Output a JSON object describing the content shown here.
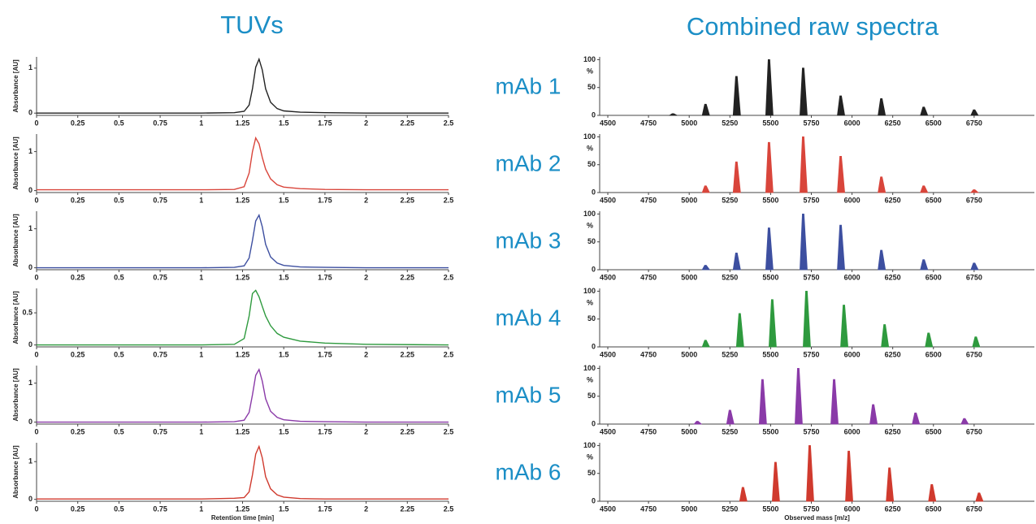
{
  "panel_titles": [
    "TUVs",
    "Combined raw spectra"
  ],
  "sample_labels": [
    "mAb 1",
    "mAb 2",
    "mAb 3",
    "mAb 4",
    "mAb 5",
    "mAb 6"
  ],
  "chart_data": [
    {
      "type": "line",
      "y_label": "Absorbance [AU]",
      "color": "#222222",
      "x": [
        0,
        0.5,
        1,
        1.2,
        1.26,
        1.29,
        1.31,
        1.33,
        1.35,
        1.37,
        1.39,
        1.42,
        1.46,
        1.5,
        1.6,
        1.75,
        2,
        2.5
      ],
      "values": [
        0,
        0,
        0,
        0.01,
        0.04,
        0.18,
        0.54,
        1.02,
        1.2,
        0.96,
        0.54,
        0.24,
        0.1,
        0.05,
        0.02,
        0.01,
        0,
        0
      ],
      "xlim": [
        0,
        2.5
      ],
      "xticks": [
        0,
        0.25,
        0.5,
        0.75,
        1,
        1.25,
        1.5,
        1.75,
        2,
        2.25,
        2.5
      ],
      "ylim": [
        -0.05,
        1.25
      ],
      "yticks": [
        0,
        1
      ]
    },
    {
      "type": "line",
      "y_label": "Absorbance [AU]",
      "color": "#d9453b",
      "x": [
        0,
        0.5,
        1,
        1.2,
        1.26,
        1.29,
        1.31,
        1.33,
        1.35,
        1.37,
        1.39,
        1.42,
        1.46,
        1.5,
        1.6,
        1.75,
        2,
        2.5
      ],
      "values": [
        0.02,
        0.02,
        0.02,
        0.03,
        0.1,
        0.45,
        1.0,
        1.35,
        1.2,
        0.85,
        0.55,
        0.3,
        0.15,
        0.09,
        0.05,
        0.03,
        0.02,
        0.02
      ],
      "xlim": [
        0,
        2.5
      ],
      "xticks": [
        0,
        0.25,
        0.5,
        0.75,
        1,
        1.25,
        1.5,
        1.75,
        2,
        2.25,
        2.5
      ],
      "ylim": [
        -0.05,
        1.45
      ],
      "yticks": [
        0,
        1
      ]
    },
    {
      "type": "line",
      "y_label": "Absorbance [AU]",
      "color": "#3d4fa0",
      "x": [
        0,
        0.5,
        1,
        1.2,
        1.26,
        1.29,
        1.31,
        1.33,
        1.35,
        1.37,
        1.39,
        1.42,
        1.46,
        1.5,
        1.6,
        1.75,
        2,
        2.5
      ],
      "values": [
        0,
        0,
        0,
        0.01,
        0.05,
        0.25,
        0.7,
        1.2,
        1.35,
        1.05,
        0.6,
        0.28,
        0.12,
        0.06,
        0.02,
        0.01,
        0,
        0
      ],
      "xlim": [
        0,
        2.5
      ],
      "xticks": [
        0,
        0.25,
        0.5,
        0.75,
        1,
        1.25,
        1.5,
        1.75,
        2,
        2.25,
        2.5
      ],
      "ylim": [
        -0.05,
        1.45
      ],
      "yticks": [
        0,
        1
      ]
    },
    {
      "type": "line",
      "y_label": "Absorbance [AU]",
      "color": "#2e9a3e",
      "x": [
        0,
        0.5,
        1,
        1.2,
        1.26,
        1.29,
        1.31,
        1.33,
        1.35,
        1.37,
        1.39,
        1.42,
        1.46,
        1.5,
        1.6,
        1.75,
        2,
        2.5
      ],
      "values": [
        0,
        0,
        0,
        0.01,
        0.1,
        0.45,
        0.8,
        0.85,
        0.75,
        0.6,
        0.45,
        0.3,
        0.18,
        0.12,
        0.06,
        0.03,
        0.01,
        0
      ],
      "xlim": [
        0,
        2.5
      ],
      "xticks": [
        0,
        0.25,
        0.5,
        0.75,
        1,
        1.25,
        1.5,
        1.75,
        2,
        2.25,
        2.5
      ],
      "ylim": [
        -0.03,
        0.88
      ],
      "yticks": [
        0,
        0.5
      ]
    },
    {
      "type": "line",
      "y_label": "Absorbance [AU]",
      "color": "#8a3aa8",
      "x": [
        0,
        0.5,
        1,
        1.2,
        1.26,
        1.29,
        1.31,
        1.33,
        1.35,
        1.37,
        1.39,
        1.42,
        1.46,
        1.5,
        1.6,
        1.75,
        2,
        2.5
      ],
      "values": [
        0,
        0,
        0,
        0.01,
        0.05,
        0.25,
        0.7,
        1.2,
        1.35,
        1.05,
        0.6,
        0.28,
        0.12,
        0.06,
        0.02,
        0.01,
        0,
        0
      ],
      "xlim": [
        0,
        2.5
      ],
      "xticks": [
        0,
        0.25,
        0.5,
        0.75,
        1,
        1.25,
        1.5,
        1.75,
        2,
        2.25,
        2.5
      ],
      "ylim": [
        -0.05,
        1.45
      ],
      "yticks": [
        0,
        1
      ]
    },
    {
      "type": "line",
      "y_label": "Absorbance [AU]",
      "x_label": "Retention time [min]",
      "color": "#d03a2e",
      "x": [
        0,
        0.5,
        1,
        1.2,
        1.26,
        1.29,
        1.31,
        1.33,
        1.35,
        1.37,
        1.39,
        1.42,
        1.46,
        1.5,
        1.6,
        1.75,
        2,
        2.5
      ],
      "values": [
        0.01,
        0.01,
        0.01,
        0.03,
        0.05,
        0.2,
        0.65,
        1.2,
        1.4,
        1.1,
        0.6,
        0.28,
        0.12,
        0.06,
        0.02,
        0.01,
        0.01,
        0.01
      ],
      "xlim": [
        0,
        2.5
      ],
      "xticks": [
        0,
        0.25,
        0.5,
        0.75,
        1,
        1.25,
        1.5,
        1.75,
        2,
        2.25,
        2.5
      ],
      "ylim": [
        -0.05,
        1.5
      ],
      "yticks": [
        0,
        1
      ]
    },
    {
      "type": "spectrum",
      "y_label": "%",
      "color": "#222222",
      "x": [
        4900,
        5100,
        5290,
        5490,
        5700,
        5930,
        6180,
        6440,
        6750
      ],
      "values": [
        3,
        20,
        70,
        100,
        85,
        35,
        30,
        15,
        10
      ],
      "xlim": [
        4450,
        7120
      ],
      "xticks": [
        4500,
        4750,
        5000,
        5250,
        5500,
        5750,
        6000,
        6250,
        6500,
        6750
      ],
      "ylim": [
        0,
        105
      ],
      "yticks": [
        0,
        50,
        100
      ]
    },
    {
      "type": "spectrum",
      "y_label": "%",
      "color": "#d9453b",
      "x": [
        5100,
        5290,
        5490,
        5700,
        5930,
        6180,
        6440,
        6750
      ],
      "values": [
        12,
        55,
        90,
        100,
        65,
        28,
        12,
        5
      ],
      "xlim": [
        4450,
        7120
      ],
      "xticks": [
        4500,
        4750,
        5000,
        5250,
        5500,
        5750,
        6000,
        6250,
        6500,
        6750
      ],
      "ylim": [
        0,
        105
      ],
      "yticks": [
        0,
        50,
        100
      ]
    },
    {
      "type": "spectrum",
      "y_label": "%",
      "color": "#3d4fa0",
      "x": [
        5100,
        5290,
        5490,
        5700,
        5930,
        6180,
        6440,
        6750
      ],
      "values": [
        8,
        30,
        75,
        100,
        80,
        35,
        18,
        12
      ],
      "xlim": [
        4450,
        7120
      ],
      "xticks": [
        4500,
        4750,
        5000,
        5250,
        5500,
        5750,
        6000,
        6250,
        6500,
        6750
      ],
      "ylim": [
        0,
        105
      ],
      "yticks": [
        0,
        50,
        100
      ]
    },
    {
      "type": "spectrum",
      "y_label": "%",
      "color": "#2e9a3e",
      "x": [
        5100,
        5310,
        5510,
        5720,
        5950,
        6200,
        6470,
        6760
      ],
      "values": [
        12,
        60,
        85,
        100,
        75,
        40,
        25,
        18
      ],
      "xlim": [
        4450,
        7120
      ],
      "xticks": [
        4500,
        4750,
        5000,
        5250,
        5500,
        5750,
        6000,
        6250,
        6500,
        6750
      ],
      "ylim": [
        0,
        105
      ],
      "yticks": [
        0,
        50,
        100
      ]
    },
    {
      "type": "spectrum",
      "y_label": "%",
      "color": "#8a3aa8",
      "x": [
        5050,
        5250,
        5450,
        5670,
        5890,
        6130,
        6390,
        6690
      ],
      "values": [
        5,
        25,
        80,
        100,
        80,
        35,
        20,
        10
      ],
      "xlim": [
        4450,
        7120
      ],
      "xticks": [
        4500,
        4750,
        5000,
        5250,
        5500,
        5750,
        6000,
        6250,
        6500,
        6750
      ],
      "ylim": [
        0,
        105
      ],
      "yticks": [
        0,
        50,
        100
      ]
    },
    {
      "type": "spectrum",
      "y_label": "%",
      "x_label": "Observed mass [m/z]",
      "color": "#d03a2e",
      "x": [
        5330,
        5530,
        5740,
        5980,
        6230,
        6490,
        6780
      ],
      "values": [
        25,
        70,
        100,
        90,
        60,
        30,
        15
      ],
      "xlim": [
        4450,
        7120
      ],
      "xticks": [
        4500,
        4750,
        5000,
        5250,
        5500,
        5750,
        6000,
        6250,
        6500,
        6750
      ],
      "ylim": [
        0,
        105
      ],
      "yticks": [
        0,
        50,
        100
      ]
    }
  ]
}
